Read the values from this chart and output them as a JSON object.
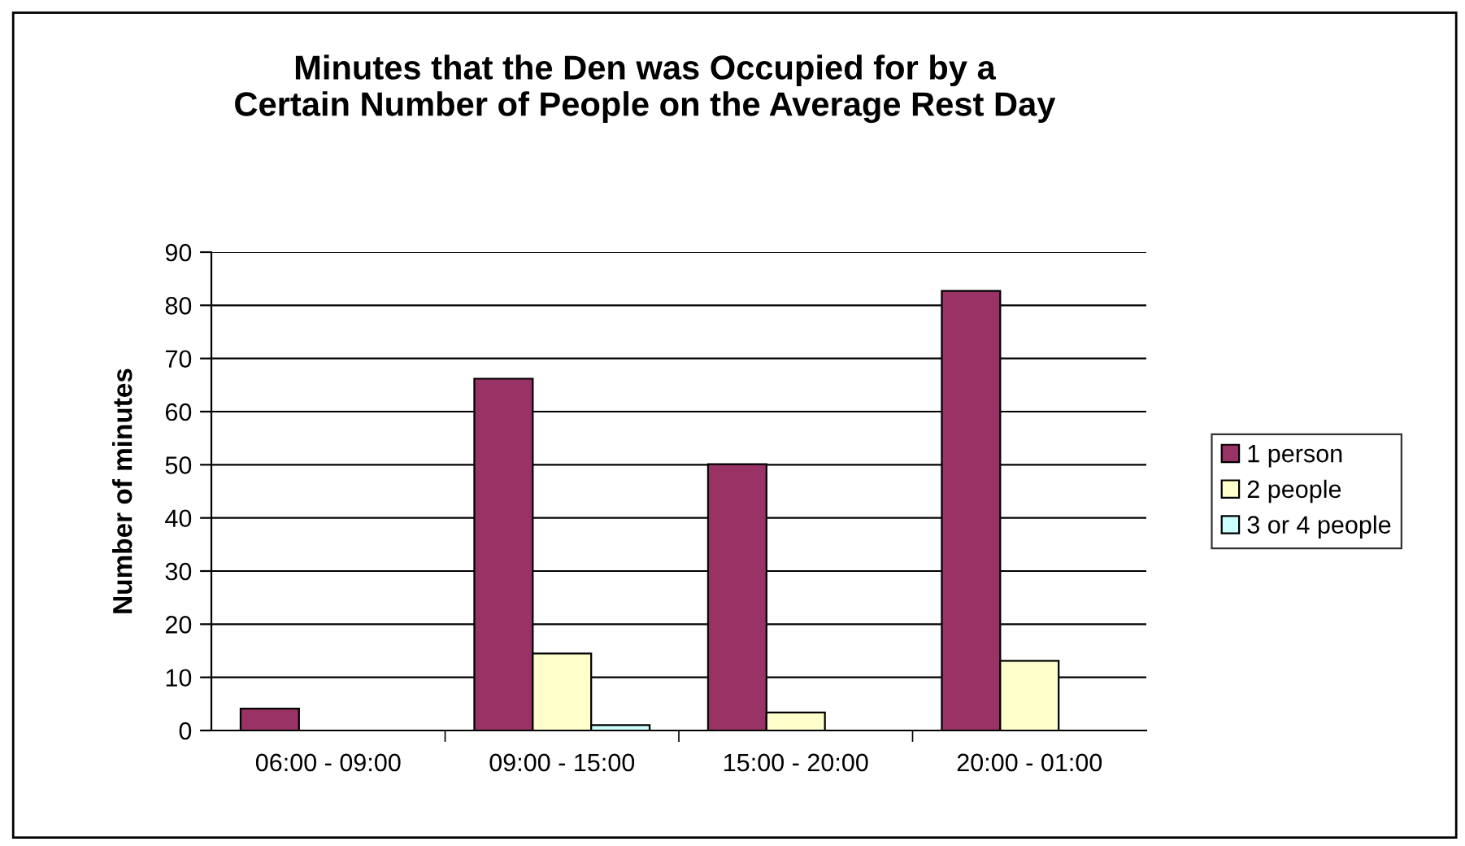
{
  "chart_data": {
    "type": "bar",
    "title": "Minutes that the Den was Occupied for by a\nCertain Number of People on the Average Rest Day",
    "ylabel": "Number of minutes",
    "categories": [
      "06:00 - 09:00",
      "09:00 - 15:00",
      "15:00 - 20:00",
      "20:00 - 01:00"
    ],
    "series": [
      {
        "name": "1 person",
        "color": "#993366",
        "values": [
          4.1,
          66.2,
          50.1,
          82.7
        ]
      },
      {
        "name": "2 people",
        "color": "#ffffcc",
        "values": [
          null,
          14.5,
          3.4,
          13.1
        ]
      },
      {
        "name": "3 or 4 people",
        "color": "#ccffff",
        "values": [
          null,
          1.0,
          null,
          null
        ]
      }
    ],
    "ylim": [
      0,
      90
    ],
    "yticks": [
      0,
      10,
      20,
      30,
      40,
      50,
      60,
      70,
      80,
      90
    ],
    "grid": "y",
    "legend": "right"
  }
}
